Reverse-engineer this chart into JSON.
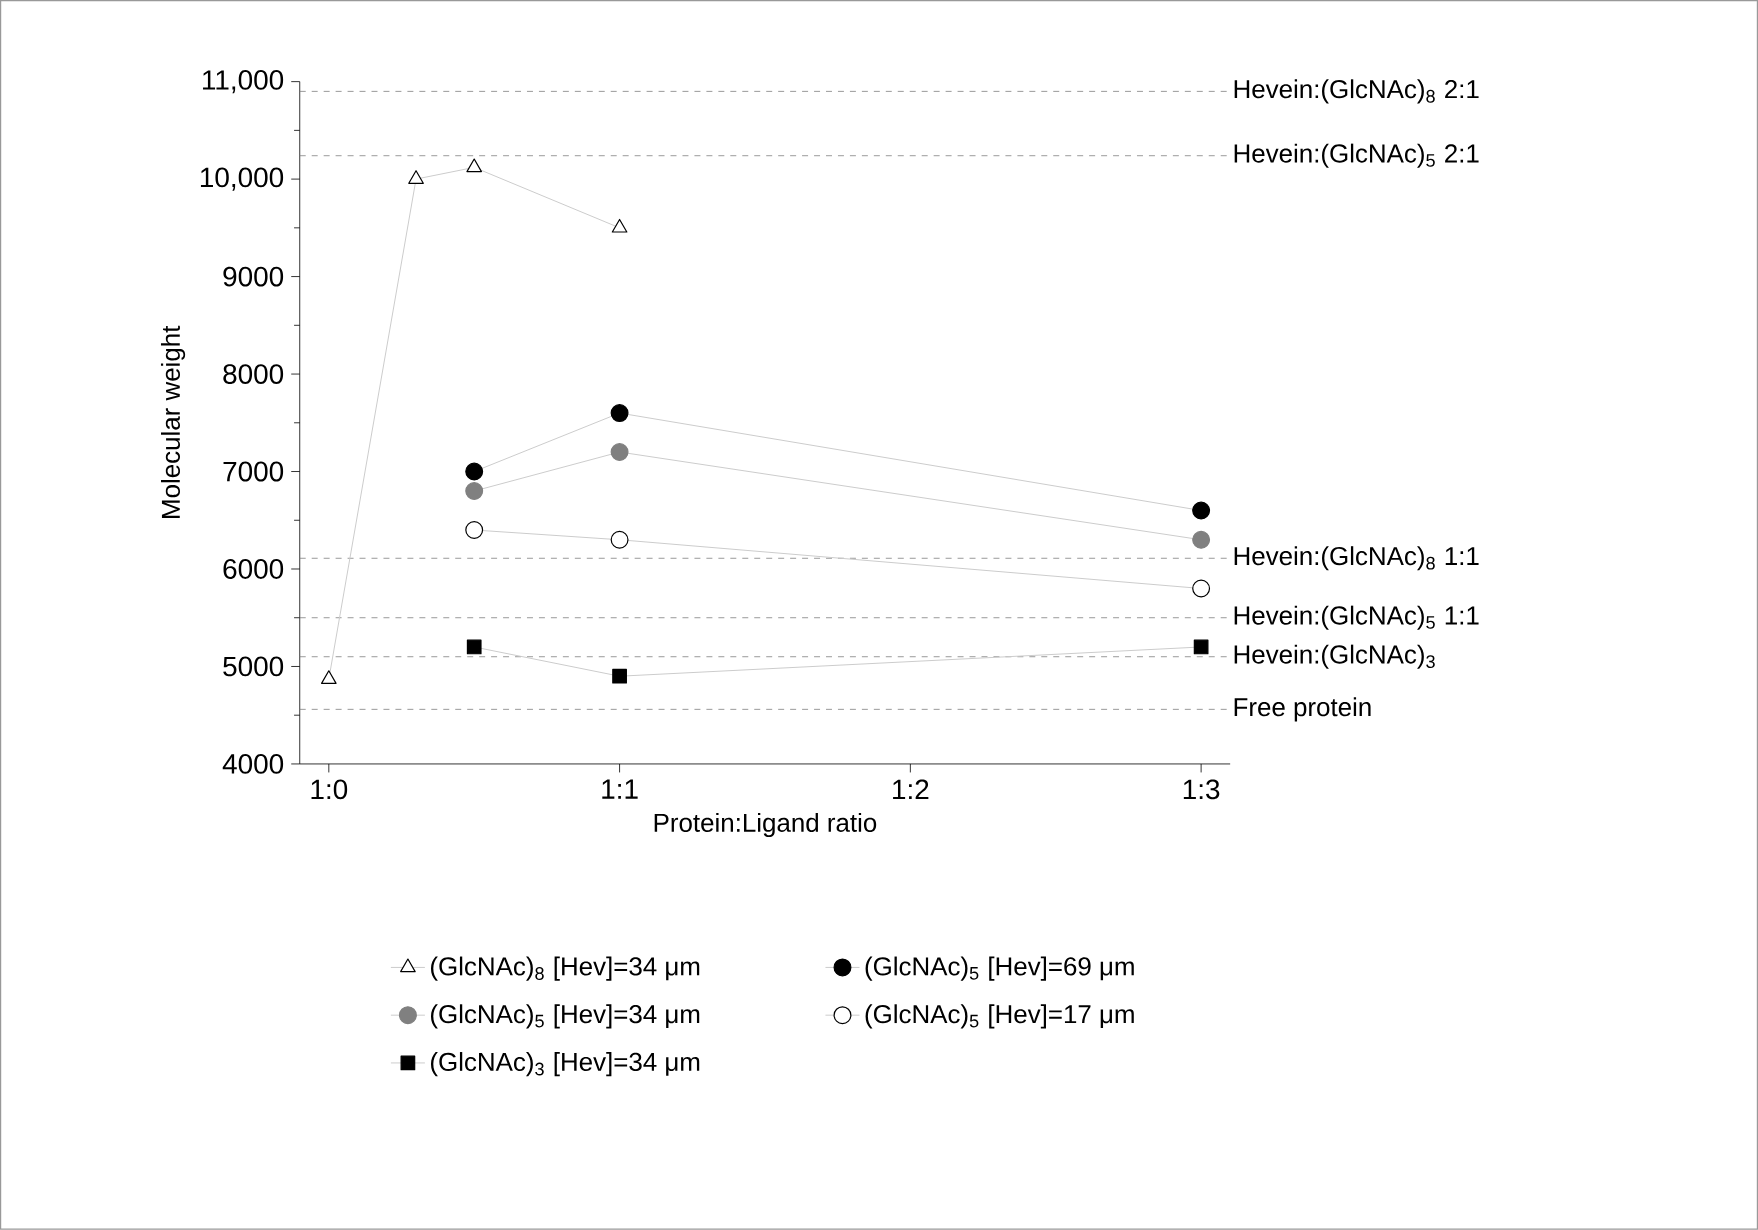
{
  "chart_data": {
    "type": "line",
    "xlabel": "Protein:Ligand ratio",
    "ylabel": "Molecular weight",
    "categories": [
      "1:0",
      null,
      null,
      null,
      null,
      null,
      null,
      null,
      null,
      null,
      "1:1",
      null,
      null,
      null,
      null,
      null,
      null,
      null,
      null,
      null,
      "1:2",
      null,
      null,
      null,
      null,
      null,
      null,
      null,
      null,
      null,
      "1:3"
    ],
    "ylim": [
      4000,
      11000
    ],
    "yticks": [
      4000,
      5000,
      6000,
      7000,
      8000,
      9000,
      {
        "value": 10000,
        "label": "10,000"
      },
      {
        "value": 11000,
        "label": "11,000"
      }
    ],
    "legend": "bottom",
    "line_style": "solid",
    "series": [
      {
        "name": "(GlcNAc)$_{8}$ [Hev]=34 μm",
        "marker": "triangle",
        "color": "#ffffff",
        "values": [
          4870,
          null,
          null,
          10000,
          null,
          10120,
          null,
          null,
          null,
          null,
          9500,
          null,
          null,
          null,
          null,
          null,
          null,
          null,
          null,
          null,
          null,
          null,
          null,
          null,
          null,
          null,
          null,
          null,
          null,
          null,
          null
        ]
      },
      {
        "name": "(GlcNAc)$_{5}$ [Hev]=69  μm",
        "marker": "circle",
        "color": "#000000",
        "values": [
          null,
          null,
          null,
          null,
          null,
          7000,
          null,
          null,
          null,
          null,
          7600,
          null,
          null,
          null,
          null,
          null,
          null,
          null,
          null,
          null,
          null,
          null,
          null,
          null,
          null,
          null,
          null,
          null,
          null,
          null,
          6600
        ]
      },
      {
        "name": "(GlcNAc)$_{5}$ [Hev]=34  μm",
        "marker": "circle",
        "color": "#808080",
        "values": [
          null,
          null,
          null,
          null,
          null,
          6800,
          null,
          null,
          null,
          null,
          7200,
          null,
          null,
          null,
          null,
          null,
          null,
          null,
          null,
          null,
          null,
          null,
          null,
          null,
          null,
          null,
          null,
          null,
          null,
          null,
          6300
        ]
      },
      {
        "name": "(GlcNAc)$_{5}$ [Hev]=17  μm",
        "marker": "circle",
        "color": "#ffffff",
        "values": [
          null,
          null,
          null,
          null,
          null,
          6400,
          null,
          null,
          null,
          null,
          6300,
          null,
          null,
          null,
          null,
          null,
          null,
          null,
          null,
          null,
          null,
          null,
          null,
          null,
          null,
          null,
          null,
          null,
          null,
          null,
          5800
        ]
      },
      {
        "name": "(GlcNAc)$_{3}$ [Hev]=34  μm",
        "marker": "square",
        "color": "#000000",
        "values": [
          null,
          null,
          null,
          null,
          null,
          5200,
          null,
          null,
          null,
          null,
          4900,
          null,
          null,
          null,
          null,
          null,
          null,
          null,
          null,
          null,
          null,
          null,
          null,
          null,
          null,
          null,
          null,
          null,
          null,
          null,
          5200
        ]
      }
    ],
    "ref_lines": [
      {
        "axis": "y",
        "value": 10900,
        "line_style": "dashed"
      },
      {
        "axis": "y",
        "value": 10240,
        "line_style": "dashed"
      },
      {
        "axis": "y",
        "value": 6110,
        "line_style": "dashed"
      },
      {
        "axis": "y",
        "value": 5500,
        "line_style": "dashed"
      },
      {
        "axis": "y",
        "value": 5100,
        "line_style": "dashed"
      },
      {
        "axis": "y",
        "value": 4560,
        "line_style": "dashed"
      }
    ],
    "annotations": [
      "Hevein:(GlcNAc)$_{8}$ 2:1",
      "Hevein:(GlcNAc)$_{5}$ 2:1",
      "Hevein:(GlcNAc)$_{8}$ 1:1",
      "Hevein:(GlcNAc)$_{5}$ 1:1",
      "Hevein:(GlcNAc)$_{3}$",
      "Free protein"
    ]
  }
}
